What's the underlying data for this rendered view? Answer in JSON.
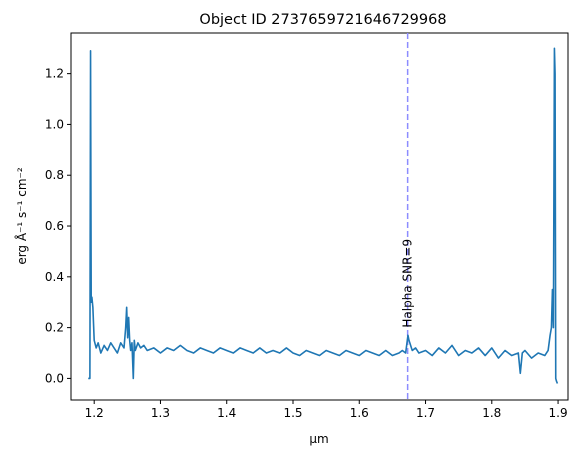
{
  "chart_data": {
    "type": "line",
    "title": "Object ID 2737659721646729968",
    "xlabel": "µm",
    "ylabel": "erg Å⁻¹ s⁻¹ cm⁻²",
    "xlim": [
      1.165,
      1.915
    ],
    "ylim": [
      -0.085,
      1.36
    ],
    "xticks": [
      1.2,
      1.3,
      1.4,
      1.5,
      1.6,
      1.7,
      1.8,
      1.9
    ],
    "xtick_labels": [
      "1.2",
      "1.3",
      "1.4",
      "1.5",
      "1.6",
      "1.7",
      "1.8",
      "1.9"
    ],
    "yticks": [
      0.0,
      0.2,
      0.4,
      0.6,
      0.8,
      1.0,
      1.2
    ],
    "ytick_labels": [
      "0.0",
      "0.2",
      "0.4",
      "0.6",
      "0.8",
      "1.0",
      "1.2"
    ],
    "grid": false,
    "series": [
      {
        "color": "#1f77b4",
        "x": [
          1.191,
          1.1935,
          1.1945,
          1.1955,
          1.1965,
          1.198,
          1.2,
          1.203,
          1.206,
          1.21,
          1.215,
          1.22,
          1.225,
          1.23,
          1.235,
          1.24,
          1.245,
          1.2475,
          1.249,
          1.2505,
          1.252,
          1.2535,
          1.255,
          1.257,
          1.259,
          1.2605,
          1.262,
          1.266,
          1.27,
          1.275,
          1.28,
          1.29,
          1.3,
          1.31,
          1.32,
          1.33,
          1.34,
          1.35,
          1.36,
          1.37,
          1.38,
          1.39,
          1.4,
          1.41,
          1.42,
          1.43,
          1.44,
          1.45,
          1.46,
          1.47,
          1.48,
          1.49,
          1.5,
          1.51,
          1.52,
          1.53,
          1.54,
          1.55,
          1.56,
          1.57,
          1.58,
          1.59,
          1.6,
          1.61,
          1.62,
          1.63,
          1.64,
          1.65,
          1.66,
          1.665,
          1.67,
          1.6735,
          1.675,
          1.68,
          1.685,
          1.69,
          1.7,
          1.71,
          1.72,
          1.73,
          1.74,
          1.75,
          1.76,
          1.77,
          1.78,
          1.79,
          1.8,
          1.81,
          1.82,
          1.83,
          1.84,
          1.843,
          1.846,
          1.85,
          1.86,
          1.87,
          1.88,
          1.885,
          1.888,
          1.89,
          1.8915,
          1.893,
          1.8945,
          1.8955,
          1.8965,
          1.8975,
          1.899
        ],
        "y": [
          0.0,
          0.0,
          1.29,
          0.3,
          0.32,
          0.28,
          0.15,
          0.12,
          0.14,
          0.1,
          0.13,
          0.11,
          0.14,
          0.12,
          0.1,
          0.14,
          0.12,
          0.2,
          0.28,
          0.16,
          0.24,
          0.15,
          0.11,
          0.14,
          0.0,
          0.15,
          0.11,
          0.14,
          0.12,
          0.13,
          0.11,
          0.12,
          0.1,
          0.12,
          0.11,
          0.13,
          0.11,
          0.1,
          0.12,
          0.11,
          0.1,
          0.12,
          0.11,
          0.1,
          0.12,
          0.11,
          0.1,
          0.12,
          0.1,
          0.11,
          0.1,
          0.12,
          0.1,
          0.09,
          0.11,
          0.1,
          0.09,
          0.11,
          0.1,
          0.09,
          0.11,
          0.1,
          0.09,
          0.11,
          0.1,
          0.09,
          0.11,
          0.09,
          0.1,
          0.11,
          0.1,
          0.17,
          0.15,
          0.11,
          0.12,
          0.1,
          0.11,
          0.09,
          0.12,
          0.1,
          0.13,
          0.09,
          0.11,
          0.1,
          0.12,
          0.09,
          0.12,
          0.08,
          0.11,
          0.09,
          0.1,
          0.02,
          0.1,
          0.11,
          0.08,
          0.1,
          0.09,
          0.11,
          0.17,
          0.2,
          0.35,
          0.2,
          1.3,
          1.2,
          0.0,
          -0.01,
          -0.02
        ]
      }
    ],
    "annotations": [
      {
        "type": "vline",
        "x": 1.673,
        "color": "#8c8cff",
        "style": "dashed"
      },
      {
        "type": "text",
        "text": "Halpha SNR=9",
        "x": 1.673,
        "y": 0.2,
        "rotation": 90
      }
    ]
  }
}
